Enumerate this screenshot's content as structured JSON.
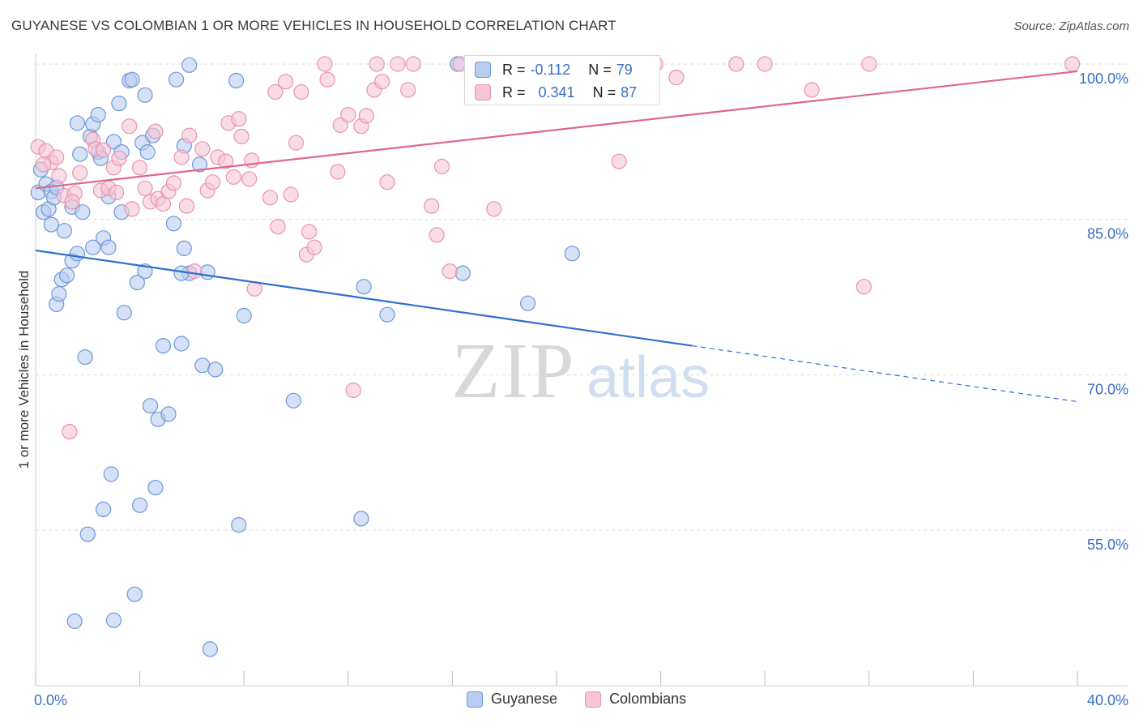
{
  "title": "GUYANESE VS COLOMBIAN 1 OR MORE VEHICLES IN HOUSEHOLD CORRELATION CHART",
  "source": "Source: ZipAtlas.com",
  "watermark": {
    "zip": "ZIP",
    "atlas": "atlas"
  },
  "colors": {
    "blue_fill": "#b8cdf0",
    "blue_stroke": "#6f98d8",
    "blue_line": "#2f6fd0",
    "pink_fill": "#f7c5d5",
    "pink_stroke": "#e893b0",
    "pink_line": "#e0668f",
    "axis_text": "#3b6fc4",
    "grid": "#dddddd"
  },
  "stats": {
    "r_label": "R =",
    "n_label": "N =",
    "guyanese": {
      "r": "-0.112",
      "n": "79"
    },
    "colombians": {
      "r": "0.341",
      "n": "87"
    }
  },
  "legend": {
    "guyanese": "Guyanese",
    "colombians": "Colombians"
  },
  "chart_data": {
    "type": "scatter",
    "title": "GUYANESE VS COLOMBIAN 1 OR MORE VEHICLES IN HOUSEHOLD CORRELATION CHART",
    "xlabel": "",
    "ylabel": "1 or more Vehicles in Household",
    "xlim": [
      0,
      40
    ],
    "ylim": [
      40,
      101.5
    ],
    "x_ticks": [
      "0.0%",
      "40.0%"
    ],
    "y_ticks": [
      {
        "value": 100,
        "label": "100.0%"
      },
      {
        "value": 85,
        "label": "85.0%"
      },
      {
        "value": 70,
        "label": "70.0%"
      },
      {
        "value": 55,
        "label": "55.0%"
      }
    ],
    "series": [
      {
        "name": "Guyanese",
        "trend": {
          "x0": 0,
          "y0": 82.0,
          "x1": 25.2,
          "y1": 72.8,
          "dash_x1": 40,
          "dash_y1": 67.4
        },
        "points": [
          [
            0.1,
            87.6
          ],
          [
            0.2,
            89.8
          ],
          [
            0.3,
            85.7
          ],
          [
            0.4,
            88.4
          ],
          [
            0.5,
            86.0
          ],
          [
            0.6,
            87.7
          ],
          [
            0.6,
            84.5
          ],
          [
            0.7,
            87.1
          ],
          [
            0.8,
            88.1
          ],
          [
            0.8,
            76.8
          ],
          [
            0.9,
            77.8
          ],
          [
            1.0,
            79.2
          ],
          [
            1.1,
            83.9
          ],
          [
            1.2,
            79.6
          ],
          [
            1.4,
            86.2
          ],
          [
            1.4,
            81.0
          ],
          [
            1.5,
            46.2
          ],
          [
            1.6,
            94.3
          ],
          [
            1.6,
            81.7
          ],
          [
            1.7,
            91.3
          ],
          [
            1.8,
            85.7
          ],
          [
            1.9,
            71.7
          ],
          [
            2.0,
            54.6
          ],
          [
            2.1,
            93.0
          ],
          [
            2.2,
            82.3
          ],
          [
            2.2,
            94.2
          ],
          [
            2.4,
            95.1
          ],
          [
            2.4,
            91.5
          ],
          [
            2.5,
            90.9
          ],
          [
            2.6,
            83.2
          ],
          [
            2.6,
            57.0
          ],
          [
            2.8,
            87.2
          ],
          [
            2.8,
            82.3
          ],
          [
            2.9,
            60.4
          ],
          [
            3.0,
            46.3
          ],
          [
            3.0,
            92.5
          ],
          [
            3.2,
            96.2
          ],
          [
            3.3,
            91.5
          ],
          [
            3.3,
            85.7
          ],
          [
            3.4,
            76.0
          ],
          [
            3.6,
            98.4
          ],
          [
            3.7,
            98.5
          ],
          [
            3.8,
            48.8
          ],
          [
            3.9,
            78.9
          ],
          [
            4.0,
            57.4
          ],
          [
            4.1,
            92.4
          ],
          [
            4.2,
            97.0
          ],
          [
            4.2,
            80.0
          ],
          [
            4.3,
            91.5
          ],
          [
            4.4,
            67.0
          ],
          [
            4.5,
            93.1
          ],
          [
            4.6,
            59.1
          ],
          [
            4.7,
            65.7
          ],
          [
            4.9,
            72.8
          ],
          [
            5.1,
            66.2
          ],
          [
            5.3,
            84.6
          ],
          [
            5.4,
            98.5
          ],
          [
            5.6,
            73.0
          ],
          [
            5.7,
            82.2
          ],
          [
            5.7,
            92.1
          ],
          [
            5.9,
            99.9
          ],
          [
            5.9,
            79.8
          ],
          [
            6.3,
            90.3
          ],
          [
            6.4,
            70.9
          ],
          [
            6.6,
            79.9
          ],
          [
            6.7,
            43.5
          ],
          [
            6.9,
            70.5
          ],
          [
            7.7,
            98.4
          ],
          [
            7.8,
            55.5
          ],
          [
            8.0,
            75.7
          ],
          [
            9.9,
            67.5
          ],
          [
            12.5,
            56.1
          ],
          [
            12.6,
            78.5
          ],
          [
            13.5,
            75.8
          ],
          [
            16.2,
            100.0
          ],
          [
            16.4,
            79.8
          ],
          [
            18.9,
            76.9
          ],
          [
            20.6,
            81.7
          ],
          [
            5.6,
            79.8
          ]
        ]
      },
      {
        "name": "Colombians",
        "trend": {
          "x0": 0,
          "y0": 88.0,
          "x1": 40,
          "y1": 99.3
        },
        "points": [
          [
            0.1,
            92.0
          ],
          [
            0.4,
            91.6
          ],
          [
            0.6,
            90.5
          ],
          [
            0.8,
            91.0
          ],
          [
            0.9,
            89.2
          ],
          [
            1.1,
            87.3
          ],
          [
            1.3,
            64.5
          ],
          [
            1.5,
            87.5
          ],
          [
            1.7,
            89.5
          ],
          [
            2.2,
            92.7
          ],
          [
            2.3,
            91.8
          ],
          [
            2.5,
            87.8
          ],
          [
            2.6,
            91.7
          ],
          [
            2.8,
            88.0
          ],
          [
            3.0,
            90.0
          ],
          [
            3.1,
            87.6
          ],
          [
            3.2,
            90.9
          ],
          [
            3.6,
            94.0
          ],
          [
            3.7,
            86.0
          ],
          [
            4.0,
            90.0
          ],
          [
            4.2,
            88.0
          ],
          [
            4.4,
            86.7
          ],
          [
            4.6,
            93.5
          ],
          [
            4.7,
            87.0
          ],
          [
            4.9,
            86.5
          ],
          [
            5.1,
            87.7
          ],
          [
            5.3,
            88.5
          ],
          [
            5.6,
            91.0
          ],
          [
            5.8,
            86.3
          ],
          [
            5.9,
            93.1
          ],
          [
            6.1,
            80.0
          ],
          [
            6.4,
            91.8
          ],
          [
            6.6,
            87.8
          ],
          [
            6.8,
            88.6
          ],
          [
            7.0,
            91.0
          ],
          [
            7.3,
            90.6
          ],
          [
            7.4,
            94.3
          ],
          [
            7.6,
            89.1
          ],
          [
            7.8,
            94.7
          ],
          [
            7.9,
            93.0
          ],
          [
            8.2,
            88.9
          ],
          [
            8.3,
            90.7
          ],
          [
            8.4,
            78.3
          ],
          [
            9.0,
            87.1
          ],
          [
            9.2,
            97.3
          ],
          [
            9.3,
            84.3
          ],
          [
            9.6,
            98.3
          ],
          [
            9.8,
            87.4
          ],
          [
            10.0,
            92.4
          ],
          [
            10.2,
            97.3
          ],
          [
            10.4,
            81.6
          ],
          [
            10.5,
            83.8
          ],
          [
            10.7,
            82.3
          ],
          [
            11.1,
            100.0
          ],
          [
            11.2,
            98.5
          ],
          [
            11.6,
            89.6
          ],
          [
            11.7,
            94.1
          ],
          [
            12.0,
            95.1
          ],
          [
            12.2,
            68.5
          ],
          [
            12.5,
            94.0
          ],
          [
            12.7,
            95.0
          ],
          [
            13.0,
            97.5
          ],
          [
            13.1,
            100.0
          ],
          [
            13.3,
            98.3
          ],
          [
            13.5,
            88.6
          ],
          [
            13.9,
            100.0
          ],
          [
            14.3,
            97.5
          ],
          [
            14.5,
            100.0
          ],
          [
            15.2,
            86.3
          ],
          [
            15.4,
            83.5
          ],
          [
            15.6,
            90.1
          ],
          [
            15.9,
            80.0
          ],
          [
            16.3,
            100.0
          ],
          [
            17.6,
            86.0
          ],
          [
            19.1,
            100.0
          ],
          [
            20.8,
            100.0
          ],
          [
            22.4,
            90.6
          ],
          [
            23.8,
            100.0
          ],
          [
            24.6,
            98.7
          ],
          [
            26.9,
            100.0
          ],
          [
            28.0,
            100.0
          ],
          [
            29.8,
            97.5
          ],
          [
            31.8,
            78.5
          ],
          [
            32.0,
            100.0
          ],
          [
            39.8,
            100.0
          ],
          [
            0.3,
            90.3
          ],
          [
            1.4,
            86.7
          ]
        ]
      }
    ]
  }
}
